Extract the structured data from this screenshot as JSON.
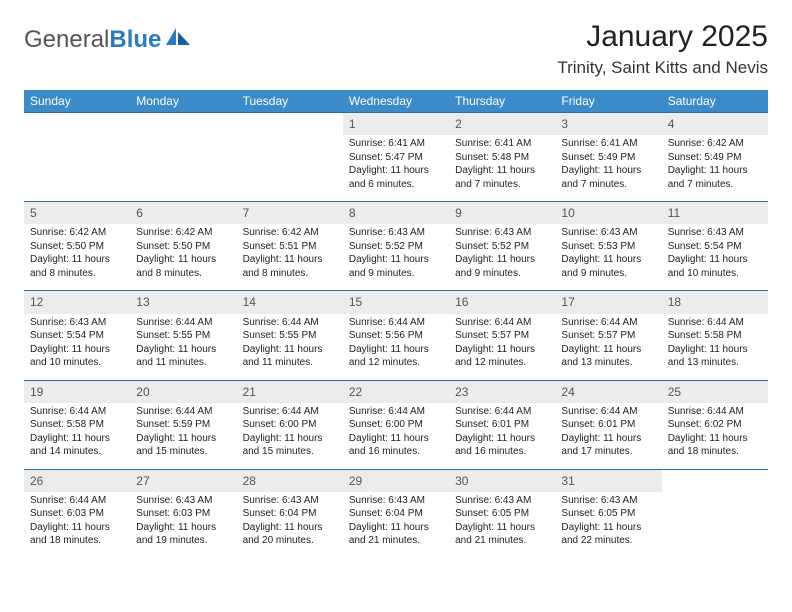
{
  "logo": {
    "general": "General",
    "blue": "Blue"
  },
  "title": "January 2025",
  "location": "Trinity, Saint Kitts and Nevis",
  "colors": {
    "header_bg": "#3b8bc9",
    "header_text": "#ffffff",
    "daynum_bg": "#ececec",
    "week_border": "#2b6fa8"
  },
  "day_headers": [
    "Sunday",
    "Monday",
    "Tuesday",
    "Wednesday",
    "Thursday",
    "Friday",
    "Saturday"
  ],
  "weeks": [
    [
      null,
      null,
      null,
      {
        "n": "1",
        "sr": "Sunrise: 6:41 AM",
        "ss": "Sunset: 5:47 PM",
        "dl": "Daylight: 11 hours and 6 minutes."
      },
      {
        "n": "2",
        "sr": "Sunrise: 6:41 AM",
        "ss": "Sunset: 5:48 PM",
        "dl": "Daylight: 11 hours and 7 minutes."
      },
      {
        "n": "3",
        "sr": "Sunrise: 6:41 AM",
        "ss": "Sunset: 5:49 PM",
        "dl": "Daylight: 11 hours and 7 minutes."
      },
      {
        "n": "4",
        "sr": "Sunrise: 6:42 AM",
        "ss": "Sunset: 5:49 PM",
        "dl": "Daylight: 11 hours and 7 minutes."
      }
    ],
    [
      {
        "n": "5",
        "sr": "Sunrise: 6:42 AM",
        "ss": "Sunset: 5:50 PM",
        "dl": "Daylight: 11 hours and 8 minutes."
      },
      {
        "n": "6",
        "sr": "Sunrise: 6:42 AM",
        "ss": "Sunset: 5:50 PM",
        "dl": "Daylight: 11 hours and 8 minutes."
      },
      {
        "n": "7",
        "sr": "Sunrise: 6:42 AM",
        "ss": "Sunset: 5:51 PM",
        "dl": "Daylight: 11 hours and 8 minutes."
      },
      {
        "n": "8",
        "sr": "Sunrise: 6:43 AM",
        "ss": "Sunset: 5:52 PM",
        "dl": "Daylight: 11 hours and 9 minutes."
      },
      {
        "n": "9",
        "sr": "Sunrise: 6:43 AM",
        "ss": "Sunset: 5:52 PM",
        "dl": "Daylight: 11 hours and 9 minutes."
      },
      {
        "n": "10",
        "sr": "Sunrise: 6:43 AM",
        "ss": "Sunset: 5:53 PM",
        "dl": "Daylight: 11 hours and 9 minutes."
      },
      {
        "n": "11",
        "sr": "Sunrise: 6:43 AM",
        "ss": "Sunset: 5:54 PM",
        "dl": "Daylight: 11 hours and 10 minutes."
      }
    ],
    [
      {
        "n": "12",
        "sr": "Sunrise: 6:43 AM",
        "ss": "Sunset: 5:54 PM",
        "dl": "Daylight: 11 hours and 10 minutes."
      },
      {
        "n": "13",
        "sr": "Sunrise: 6:44 AM",
        "ss": "Sunset: 5:55 PM",
        "dl": "Daylight: 11 hours and 11 minutes."
      },
      {
        "n": "14",
        "sr": "Sunrise: 6:44 AM",
        "ss": "Sunset: 5:55 PM",
        "dl": "Daylight: 11 hours and 11 minutes."
      },
      {
        "n": "15",
        "sr": "Sunrise: 6:44 AM",
        "ss": "Sunset: 5:56 PM",
        "dl": "Daylight: 11 hours and 12 minutes."
      },
      {
        "n": "16",
        "sr": "Sunrise: 6:44 AM",
        "ss": "Sunset: 5:57 PM",
        "dl": "Daylight: 11 hours and 12 minutes."
      },
      {
        "n": "17",
        "sr": "Sunrise: 6:44 AM",
        "ss": "Sunset: 5:57 PM",
        "dl": "Daylight: 11 hours and 13 minutes."
      },
      {
        "n": "18",
        "sr": "Sunrise: 6:44 AM",
        "ss": "Sunset: 5:58 PM",
        "dl": "Daylight: 11 hours and 13 minutes."
      }
    ],
    [
      {
        "n": "19",
        "sr": "Sunrise: 6:44 AM",
        "ss": "Sunset: 5:58 PM",
        "dl": "Daylight: 11 hours and 14 minutes."
      },
      {
        "n": "20",
        "sr": "Sunrise: 6:44 AM",
        "ss": "Sunset: 5:59 PM",
        "dl": "Daylight: 11 hours and 15 minutes."
      },
      {
        "n": "21",
        "sr": "Sunrise: 6:44 AM",
        "ss": "Sunset: 6:00 PM",
        "dl": "Daylight: 11 hours and 15 minutes."
      },
      {
        "n": "22",
        "sr": "Sunrise: 6:44 AM",
        "ss": "Sunset: 6:00 PM",
        "dl": "Daylight: 11 hours and 16 minutes."
      },
      {
        "n": "23",
        "sr": "Sunrise: 6:44 AM",
        "ss": "Sunset: 6:01 PM",
        "dl": "Daylight: 11 hours and 16 minutes."
      },
      {
        "n": "24",
        "sr": "Sunrise: 6:44 AM",
        "ss": "Sunset: 6:01 PM",
        "dl": "Daylight: 11 hours and 17 minutes."
      },
      {
        "n": "25",
        "sr": "Sunrise: 6:44 AM",
        "ss": "Sunset: 6:02 PM",
        "dl": "Daylight: 11 hours and 18 minutes."
      }
    ],
    [
      {
        "n": "26",
        "sr": "Sunrise: 6:44 AM",
        "ss": "Sunset: 6:03 PM",
        "dl": "Daylight: 11 hours and 18 minutes."
      },
      {
        "n": "27",
        "sr": "Sunrise: 6:43 AM",
        "ss": "Sunset: 6:03 PM",
        "dl": "Daylight: 11 hours and 19 minutes."
      },
      {
        "n": "28",
        "sr": "Sunrise: 6:43 AM",
        "ss": "Sunset: 6:04 PM",
        "dl": "Daylight: 11 hours and 20 minutes."
      },
      {
        "n": "29",
        "sr": "Sunrise: 6:43 AM",
        "ss": "Sunset: 6:04 PM",
        "dl": "Daylight: 11 hours and 21 minutes."
      },
      {
        "n": "30",
        "sr": "Sunrise: 6:43 AM",
        "ss": "Sunset: 6:05 PM",
        "dl": "Daylight: 11 hours and 21 minutes."
      },
      {
        "n": "31",
        "sr": "Sunrise: 6:43 AM",
        "ss": "Sunset: 6:05 PM",
        "dl": "Daylight: 11 hours and 22 minutes."
      },
      null
    ]
  ]
}
